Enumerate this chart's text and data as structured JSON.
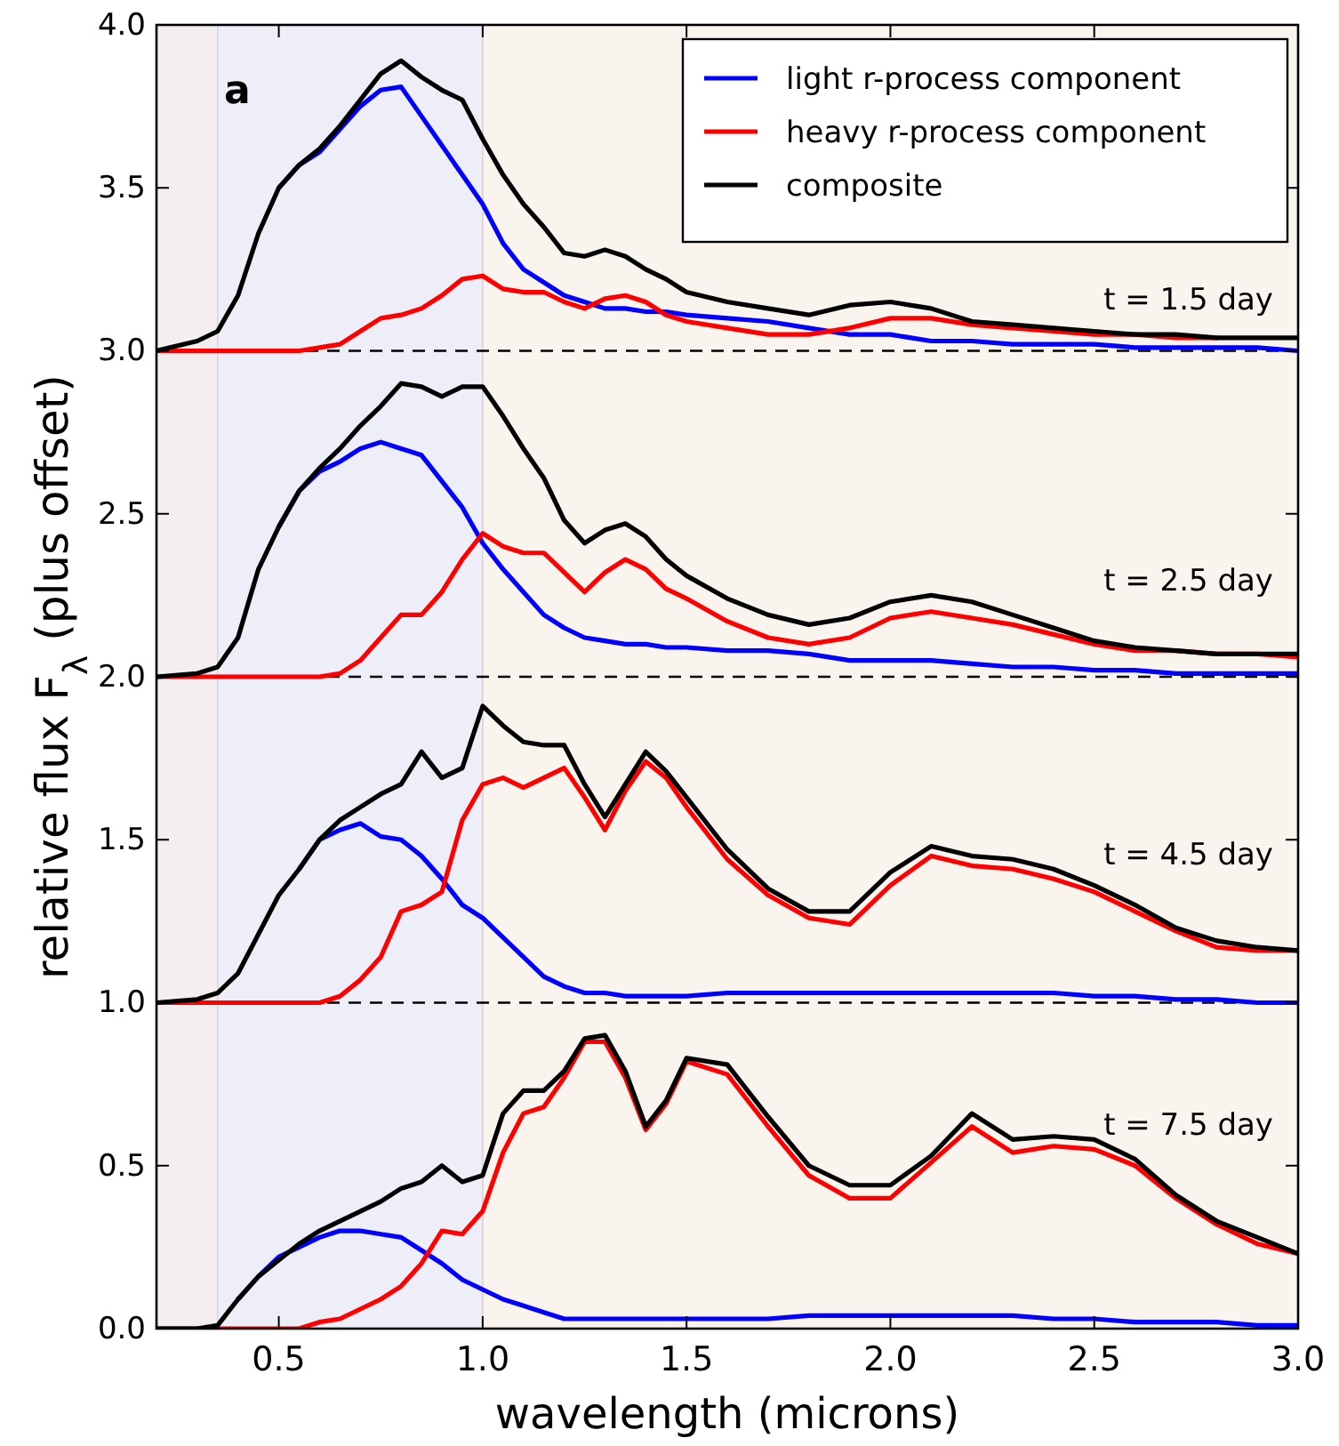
{
  "chart_data": {
    "type": "line",
    "xlabel": "wavelength (microns)",
    "ylabel": "relative flux F$_{λ}$ (plus offset)",
    "xlim": [
      0.2,
      3.0
    ],
    "ylim": [
      0,
      4.0
    ],
    "xticks": [
      {
        "value": 0.5,
        "label": "0.5"
      },
      {
        "value": 1,
        "label": "1.0"
      },
      {
        "value": 1.5,
        "label": "1.5"
      },
      {
        "value": 2,
        "label": "2.0"
      },
      {
        "value": 2.5,
        "label": "2.5"
      },
      {
        "value": 3,
        "label": "3.0"
      }
    ],
    "yticks": [
      {
        "value": 0,
        "label": "0.0"
      },
      {
        "value": 0.5,
        "label": "0.5"
      },
      {
        "value": 1,
        "label": "1.0"
      },
      {
        "value": 1.5,
        "label": "1.5"
      },
      {
        "value": 2,
        "label": "2.0"
      },
      {
        "value": 2.5,
        "label": "2.5"
      },
      {
        "value": 3,
        "label": "3.0"
      },
      {
        "value": 3.5,
        "label": "3.5"
      },
      {
        "value": 4,
        "label": "4.0"
      }
    ],
    "legend": "top right",
    "line_style": "solid",
    "marker": "none",
    "grid": false,
    "x": [
      0.2,
      0.3,
      0.35,
      0.4,
      0.45,
      0.5,
      0.55,
      0.6,
      0.65,
      0.7,
      0.75,
      0.8,
      0.85,
      0.9,
      0.95,
      1.0,
      1.05,
      1.1,
      1.15,
      1.2,
      1.25,
      1.3,
      1.35,
      1.4,
      1.45,
      1.5,
      1.6,
      1.7,
      1.8,
      1.9,
      2.0,
      2.1,
      2.2,
      2.3,
      2.4,
      2.5,
      2.6,
      2.7,
      2.8,
      2.9,
      3.0
    ],
    "series": [
      {
        "name": "light r-process component",
        "color": "#0000ff",
        "values": [
          null,
          null,
          null,
          null,
          null,
          3.5,
          3.57,
          3.61,
          3.68,
          3.75,
          3.8,
          3.81,
          3.72,
          3.63,
          3.54,
          3.45,
          3.33,
          3.25,
          3.21,
          3.17,
          3.15,
          3.13,
          3.13,
          3.12,
          3.12,
          3.11,
          3.1,
          3.09,
          3.07,
          3.05,
          3.05,
          3.03,
          3.03,
          3.02,
          3.02,
          3.02,
          3.01,
          3.01,
          3.01,
          3.01,
          3.0
        ]
      },
      {
        "name": "heavy r-process component",
        "color": "#ff0000",
        "values": [
          3.0,
          3.0,
          3.0,
          3.0,
          3.0,
          3.0,
          3.0,
          3.01,
          3.02,
          3.06,
          3.1,
          3.11,
          3.13,
          3.17,
          3.22,
          3.23,
          3.19,
          3.18,
          3.18,
          3.15,
          3.13,
          3.16,
          3.17,
          3.15,
          3.11,
          3.09,
          3.07,
          3.05,
          3.05,
          3.07,
          3.1,
          3.1,
          3.08,
          3.07,
          3.06,
          3.05,
          3.05,
          3.04,
          3.04,
          null,
          null
        ]
      },
      {
        "name": "composite",
        "color": "#000000",
        "values": [
          3.0,
          3.03,
          3.06,
          3.17,
          3.36,
          3.5,
          3.57,
          3.62,
          3.69,
          3.77,
          3.85,
          3.89,
          3.84,
          3.8,
          3.77,
          3.65,
          3.54,
          3.45,
          3.38,
          3.3,
          3.29,
          3.31,
          3.29,
          3.25,
          3.22,
          3.18,
          3.15,
          3.13,
          3.11,
          3.14,
          3.15,
          3.13,
          3.09,
          3.08,
          3.07,
          3.06,
          3.05,
          3.05,
          3.04,
          3.04,
          3.04
        ]
      },
      {
        "color": "#0000ff",
        "values": [
          null,
          null,
          null,
          null,
          null,
          2.46,
          2.57,
          2.63,
          2.66,
          2.7,
          2.72,
          2.7,
          2.68,
          2.6,
          2.52,
          2.41,
          2.33,
          2.26,
          2.19,
          2.15,
          2.12,
          2.11,
          2.1,
          2.1,
          2.09,
          2.09,
          2.08,
          2.08,
          2.07,
          2.05,
          2.05,
          2.05,
          2.04,
          2.03,
          2.03,
          2.02,
          2.02,
          2.01,
          2.01,
          2.01,
          2.01
        ]
      },
      {
        "color": "#ff0000",
        "values": [
          2.0,
          2.0,
          2.0,
          2.0,
          2.0,
          2.0,
          2.0,
          2.0,
          2.01,
          2.05,
          2.12,
          2.19,
          2.19,
          2.26,
          2.36,
          2.44,
          2.4,
          2.38,
          2.38,
          2.32,
          2.26,
          2.32,
          2.36,
          2.33,
          2.27,
          2.24,
          2.17,
          2.12,
          2.1,
          2.12,
          2.18,
          2.2,
          2.18,
          2.16,
          2.13,
          2.1,
          2.08,
          2.08,
          2.07,
          2.07,
          2.06
        ]
      },
      {
        "color": "#000000",
        "values": [
          2.0,
          2.01,
          2.03,
          2.12,
          2.33,
          2.46,
          2.57,
          2.64,
          2.7,
          2.77,
          2.83,
          2.9,
          2.89,
          2.86,
          2.89,
          2.89,
          2.8,
          2.7,
          2.61,
          2.48,
          2.41,
          2.45,
          2.47,
          2.43,
          2.36,
          2.31,
          2.24,
          2.19,
          2.16,
          2.18,
          2.23,
          2.25,
          2.23,
          2.19,
          2.15,
          2.11,
          2.09,
          2.08,
          2.07,
          2.07,
          2.07
        ]
      },
      {
        "color": "#0000ff",
        "values": [
          null,
          null,
          null,
          null,
          null,
          null,
          1.41,
          1.5,
          1.53,
          1.55,
          1.51,
          1.5,
          1.45,
          1.38,
          1.3,
          1.26,
          1.2,
          1.14,
          1.08,
          1.05,
          1.03,
          1.03,
          1.02,
          1.02,
          1.02,
          1.02,
          1.03,
          1.03,
          1.03,
          1.03,
          1.03,
          1.03,
          1.03,
          1.03,
          1.03,
          1.02,
          1.02,
          1.01,
          1.01,
          1.0,
          1.0
        ]
      },
      {
        "color": "#ff0000",
        "values": [
          1.0,
          1.0,
          1.0,
          1.0,
          1.0,
          1.0,
          1.0,
          1.0,
          1.02,
          1.07,
          1.14,
          1.28,
          1.3,
          1.34,
          1.56,
          1.67,
          1.69,
          1.66,
          1.69,
          1.72,
          1.63,
          1.53,
          1.65,
          1.74,
          1.69,
          1.6,
          1.44,
          1.33,
          1.26,
          1.24,
          1.36,
          1.45,
          1.42,
          1.41,
          1.38,
          1.34,
          1.28,
          1.22,
          1.17,
          1.16,
          1.16
        ]
      },
      {
        "color": "#000000",
        "values": [
          1.0,
          1.01,
          1.03,
          1.09,
          1.21,
          1.33,
          1.41,
          1.5,
          1.56,
          1.6,
          1.64,
          1.67,
          1.77,
          1.69,
          1.72,
          1.91,
          1.85,
          1.8,
          1.79,
          1.79,
          1.67,
          1.57,
          1.67,
          1.77,
          1.71,
          1.63,
          1.47,
          1.35,
          1.28,
          1.28,
          1.4,
          1.48,
          1.45,
          1.44,
          1.41,
          1.36,
          1.3,
          1.23,
          1.19,
          1.17,
          1.16
        ]
      },
      {
        "color": "#0000ff",
        "values": [
          null,
          null,
          null,
          0.09,
          0.16,
          0.22,
          0.25,
          0.28,
          0.3,
          0.3,
          0.29,
          0.28,
          0.24,
          0.2,
          0.15,
          0.12,
          0.09,
          0.07,
          0.05,
          0.03,
          0.03,
          0.03,
          0.03,
          0.03,
          0.03,
          0.03,
          0.03,
          0.03,
          0.04,
          0.04,
          0.04,
          0.04,
          0.04,
          0.04,
          0.03,
          0.03,
          0.02,
          0.02,
          0.02,
          0.01,
          0.01
        ]
      },
      {
        "color": "#ff0000",
        "values": [
          0,
          0,
          0,
          0,
          0,
          0,
          0,
          0.02,
          0.03,
          0.06,
          0.09,
          0.13,
          0.2,
          0.3,
          0.29,
          0.36,
          0.54,
          0.66,
          0.68,
          0.77,
          0.88,
          0.88,
          0.77,
          0.61,
          0.69,
          0.82,
          0.78,
          0.62,
          0.47,
          0.4,
          0.4,
          0.51,
          0.62,
          0.54,
          0.56,
          0.55,
          0.5,
          0.4,
          0.32,
          0.26,
          0.23
        ]
      },
      {
        "color": "#000000",
        "values": [
          0,
          0,
          0.01,
          0.09,
          0.16,
          0.21,
          0.26,
          0.3,
          0.33,
          0.36,
          0.39,
          0.43,
          0.45,
          0.5,
          0.45,
          0.47,
          0.66,
          0.73,
          0.73,
          0.79,
          0.89,
          0.9,
          0.79,
          0.62,
          0.7,
          0.83,
          0.81,
          0.65,
          0.5,
          0.44,
          0.44,
          0.53,
          0.66,
          0.58,
          0.59,
          0.58,
          0.52,
          0.41,
          0.33,
          0.28,
          0.23
        ]
      }
    ],
    "ref_lines": [
      {
        "axis": "y",
        "value": 1,
        "color": "#000000",
        "line_style": "dashed"
      },
      {
        "axis": "y",
        "value": 2,
        "color": "#000000",
        "line_style": "dashed"
      },
      {
        "axis": "y",
        "value": 3,
        "color": "#000000",
        "line_style": "dashed"
      }
    ],
    "bands": [
      {
        "axis": "x",
        "from": 0.2,
        "to": 0.35,
        "color": "#f5eef1"
      },
      {
        "axis": "x",
        "from": 0.35,
        "to": 1.0,
        "color": "#eeeef9"
      },
      {
        "axis": "x",
        "from": 1.0,
        "to": 3.0,
        "color": "#faf4ee"
      }
    ],
    "annotations": [
      "a",
      "t = 1.5 day",
      "t = 2.5 day",
      "t = 4.5 day",
      "t = 7.5 day"
    ]
  }
}
